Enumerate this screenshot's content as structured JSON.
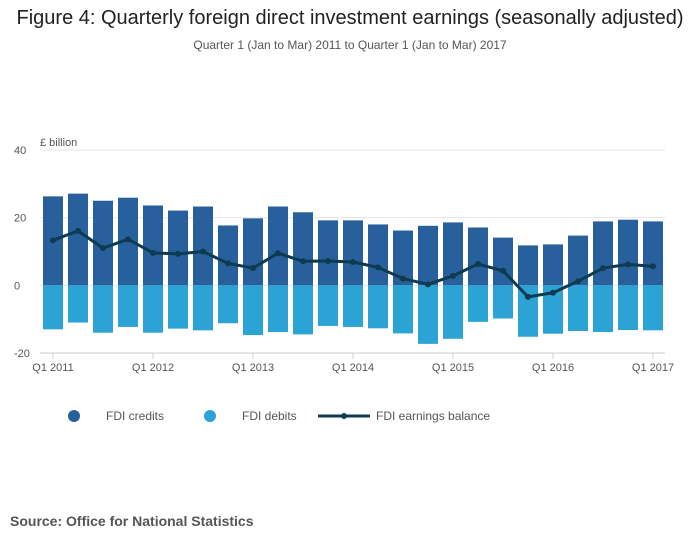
{
  "title": "Figure 4: Quarterly foreign direct investment earnings (seasonally adjusted)",
  "subtitle": "Quarter 1 (Jan to Mar) 2011 to Quarter 1 (Jan to Mar) 2017",
  "source": "Source: Office for National Statistics",
  "colors": {
    "credits": "#27609c",
    "debits": "#2ba3d4",
    "balance": "#0e3b4f",
    "grid": "#e6e6e6",
    "axis": "#cccccc"
  },
  "chart_data": {
    "type": "bar",
    "ylabel": "£ billion",
    "ylim": [
      -20,
      40
    ],
    "yticks": [
      -20,
      0,
      20,
      40
    ],
    "grid": true,
    "legend_position": "bottom-left",
    "x_tick_labels": [
      {
        "index": 0,
        "label": "Q1 2011"
      },
      {
        "index": 4,
        "label": "Q1 2012"
      },
      {
        "index": 8,
        "label": "Q1 2013"
      },
      {
        "index": 12,
        "label": "Q1 2014"
      },
      {
        "index": 16,
        "label": "Q1 2015"
      },
      {
        "index": 20,
        "label": "Q1 2016"
      },
      {
        "index": 24,
        "label": "Q1 2017"
      }
    ],
    "categories": [
      "Q1 2011",
      "Q2 2011",
      "Q3 2011",
      "Q4 2011",
      "Q1 2012",
      "Q2 2012",
      "Q3 2012",
      "Q4 2012",
      "Q1 2013",
      "Q2 2013",
      "Q3 2013",
      "Q4 2013",
      "Q1 2014",
      "Q2 2014",
      "Q3 2014",
      "Q4 2014",
      "Q1 2015",
      "Q2 2015",
      "Q3 2015",
      "Q4 2015",
      "Q1 2016",
      "Q2 2016",
      "Q3 2016",
      "Q4 2016",
      "Q1 2017"
    ],
    "series": [
      {
        "name": "FDI credits",
        "kind": "bar",
        "values": [
          26.3,
          27.1,
          25.0,
          25.9,
          23.6,
          22.1,
          23.3,
          17.7,
          19.8,
          23.3,
          21.6,
          19.2,
          19.2,
          18.0,
          16.2,
          17.6,
          18.6,
          17.1,
          14.1,
          11.8,
          12.1,
          14.7,
          18.9,
          19.4,
          18.9
        ]
      },
      {
        "name": "FDI debits",
        "kind": "bar",
        "values": [
          -13.0,
          -11.0,
          -14.0,
          -12.3,
          -14.0,
          -12.8,
          -13.3,
          -11.2,
          -14.7,
          -13.8,
          -14.5,
          -12.0,
          -12.3,
          -12.7,
          -14.2,
          -17.3,
          -15.8,
          -10.8,
          -9.8,
          -15.2,
          -14.3,
          -13.5,
          -13.8,
          -13.2,
          -13.3
        ]
      },
      {
        "name": "FDI earnings balance",
        "kind": "line",
        "values": [
          13.3,
          16.1,
          11.0,
          13.6,
          9.6,
          9.3,
          10.0,
          6.5,
          5.1,
          9.5,
          7.1,
          7.2,
          6.9,
          5.3,
          2.0,
          0.3,
          2.8,
          6.3,
          4.3,
          -3.4,
          -2.2,
          1.2,
          5.1,
          6.2,
          5.6
        ]
      }
    ]
  }
}
